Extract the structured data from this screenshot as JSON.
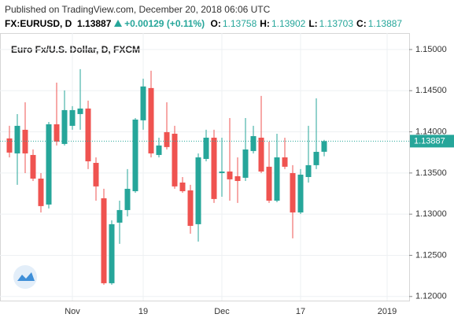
{
  "header": {
    "published": "Published on TradingView.com, December 20, 2018 06:06 UTC",
    "symbol": "FX:EURUSD, D",
    "price": "1.13887",
    "change": "+0.00129 (+0.11%)",
    "ohlc": [
      {
        "label": "O:",
        "value": "1.13758"
      },
      {
        "label": "H:",
        "value": "1.13902"
      },
      {
        "label": "L:",
        "value": "1.13703"
      },
      {
        "label": "C:",
        "value": "1.13887"
      }
    ]
  },
  "chart_data": {
    "type": "candlestick",
    "title": "Euro Fx/U.S. Dollar, D, FXCM",
    "categories": [
      null,
      null,
      null,
      null,
      null,
      null,
      null,
      null,
      "Nov",
      null,
      null,
      null,
      null,
      null,
      null,
      null,
      null,
      "19",
      null,
      null,
      null,
      null,
      null,
      null,
      null,
      null,
      null,
      "Dec",
      null,
      null,
      null,
      null,
      null,
      null,
      null,
      null,
      null,
      "17",
      null,
      null,
      null,
      null,
      null,
      null,
      null,
      null,
      null,
      null,
      "2019"
    ],
    "open": [
      1.1392,
      1.13738,
      1.14025,
      1.13719,
      1.13432,
      1.13117,
      1.14092,
      1.13853,
      1.14073,
      1.14216,
      1.14283,
      1.13623,
      1.13193,
      1.12161,
      1.12897,
      1.1305,
      1.13279,
      1.1414,
      1.14532,
      1.13719,
      1.13996,
      1.13977,
      1.13384,
      1.13289,
      1.12878,
      1.13671,
      1.13929,
      1.13499,
      1.13518,
      1.13461,
      1.13442,
      1.13767,
      1.13929,
      1.13576,
      1.13164,
      1.1369,
      1.13499,
      1.13021,
      1.13451,
      1.13595,
      1.13758,
      null,
      null,
      null,
      null,
      null,
      null,
      null,
      null
    ],
    "high": [
      1.14073,
      1.14216,
      1.14359,
      1.13786,
      1.13499,
      1.1412,
      1.14598,
      1.14503,
      1.14312,
      1.14761,
      1.14379,
      1.1369,
      1.13308,
      1.12925,
      1.13164,
      1.13547,
      1.14168,
      1.14646,
      1.14742,
      1.13929,
      1.14359,
      1.14073,
      1.13451,
      1.13356,
      1.13738,
      1.14025,
      1.14025,
      1.13929,
      1.14168,
      1.1369,
      1.14168,
      1.14073,
      1.14436,
      1.13881,
      1.13977,
      1.13929,
      1.13595,
      1.13547,
      1.14073,
      1.14407,
      1.13902,
      null,
      null,
      null,
      null,
      null,
      null,
      null,
      null
    ],
    "low": [
      1.1369,
      1.13356,
      1.13499,
      1.13403,
      1.13021,
      1.13069,
      1.13834,
      1.13834,
      1.14025,
      1.14025,
      1.13547,
      1.13164,
      1.12142,
      1.12142,
      1.12639,
      1.12973,
      1.1326,
      1.14025,
      1.1369,
      1.1369,
      1.13786,
      1.13308,
      1.1326,
      1.12763,
      1.12667,
      1.13642,
      1.13136,
      1.13212,
      1.13164,
      1.13136,
      1.13403,
      1.13738,
      1.13499,
      1.13136,
      1.13145,
      1.13547,
      1.12706,
      1.13002,
      1.13384,
      1.13547,
      1.13703,
      null,
      null,
      null,
      null,
      null,
      null,
      null,
      null
    ],
    "close": [
      1.13748,
      1.14073,
      1.13738,
      1.13432,
      1.13098,
      1.14092,
      1.13881,
      1.14264,
      1.14264,
      1.14283,
      1.13642,
      1.13337,
      1.12161,
      1.12878,
      1.1305,
      1.13308,
      1.14149,
      1.14551,
      1.13738,
      1.13834,
      1.13815,
      1.13337,
      1.13279,
      1.12858,
      1.1369,
      1.13929,
      1.13184,
      1.13518,
      1.13423,
      1.13403,
      1.13786,
      1.13948,
      1.13518,
      1.13164,
      1.1369,
      1.13576,
      1.13021,
      1.1348,
      1.13595,
      1.13757,
      1.13887,
      null,
      null,
      null,
      null,
      null,
      null,
      null,
      null
    ],
    "up_color": "#26a69a",
    "down_color": "#ef5350",
    "ylim": [
      1.1195,
      1.152
    ],
    "yticks": [
      {
        "value": 1.12,
        "label": "1.12000"
      },
      {
        "value": 1.125,
        "label": "1.12500"
      },
      {
        "value": 1.13,
        "label": "1.13000"
      },
      {
        "value": 1.135,
        "label": "1.13500"
      },
      {
        "value": 1.14,
        "label": "1.14000"
      },
      {
        "value": 1.145,
        "label": "1.14500"
      },
      {
        "value": 1.15,
        "label": "1.15000"
      }
    ],
    "last_price": {
      "value": 1.13887,
      "label": "1.13887"
    },
    "grid": true
  }
}
